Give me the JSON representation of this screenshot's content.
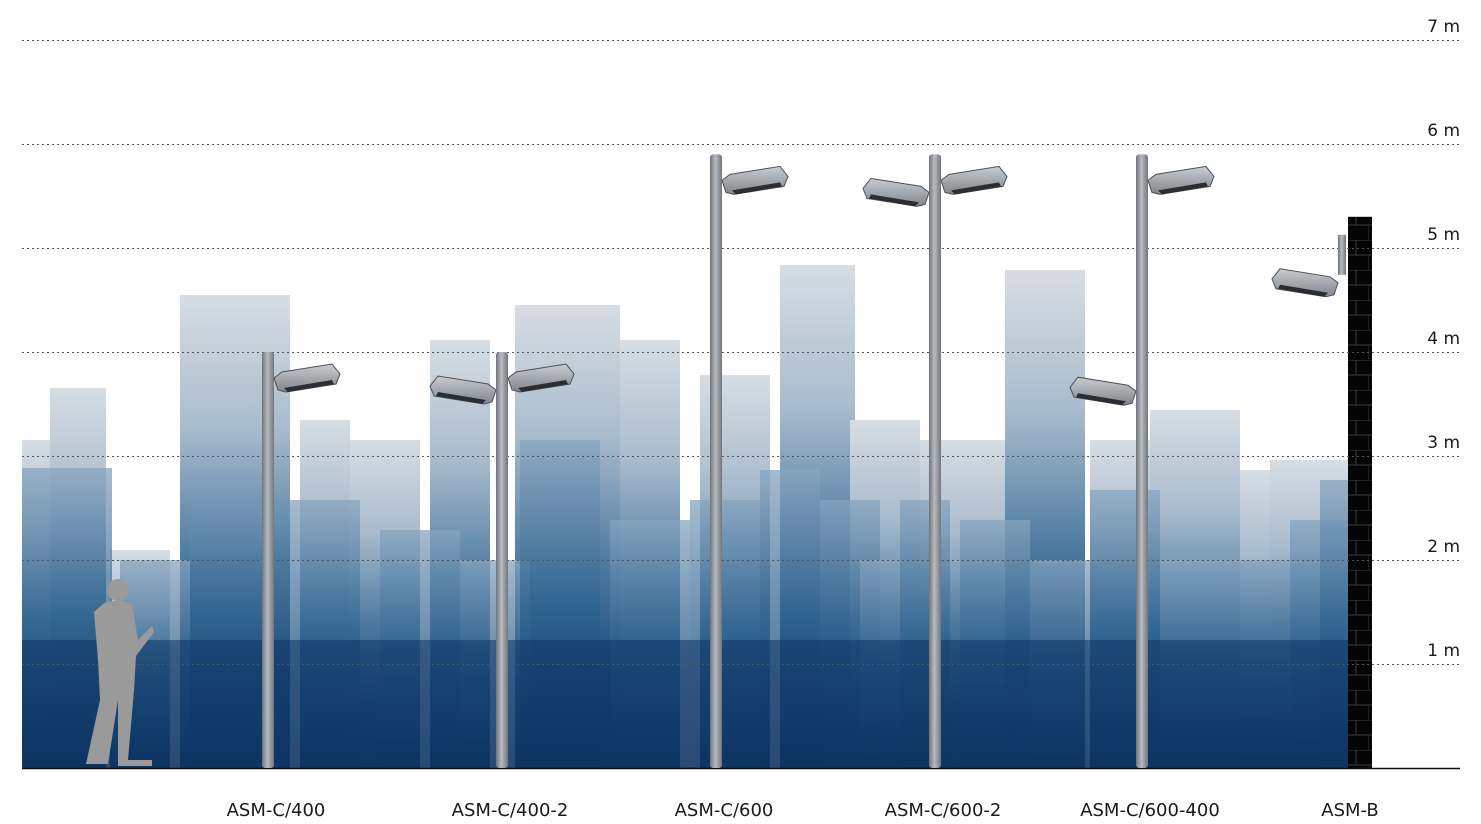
{
  "scale": {
    "unit": "m",
    "levels": [
      {
        "value": 1,
        "label": "1 m"
      },
      {
        "value": 2,
        "label": "2 m"
      },
      {
        "value": 3,
        "label": "3 m"
      },
      {
        "value": 4,
        "label": "4 m"
      },
      {
        "value": 5,
        "label": "5 m"
      },
      {
        "value": 6,
        "label": "6 m"
      },
      {
        "value": 7,
        "label": "7 m"
      }
    ]
  },
  "poles": [
    {
      "name": "ASM-C/400",
      "height_m": 4.0,
      "heads": [
        "right"
      ]
    },
    {
      "name": "ASM-C/400-2",
      "height_m": 4.0,
      "heads": [
        "left",
        "right"
      ]
    },
    {
      "name": "ASM-C/600",
      "height_m": 5.9,
      "heads": [
        "right"
      ]
    },
    {
      "name": "ASM-C/600-2",
      "height_m": 5.9,
      "heads": [
        "left",
        "right"
      ]
    },
    {
      "name": "ASM-C/600-400",
      "height_m": 5.9,
      "heads": [
        "right",
        "left-low"
      ]
    },
    {
      "name": "ASM-B",
      "height_m": 5.3,
      "heads": [
        "wall-left"
      ]
    }
  ],
  "colors": {
    "sky_top": "#ffffff",
    "city_light": "#b7c4d0",
    "city_mid": "#5f86a6",
    "city_dark": "#0e3866",
    "pole": "#8a8f96",
    "person": "#9a9a9a",
    "wall": "#000000"
  }
}
